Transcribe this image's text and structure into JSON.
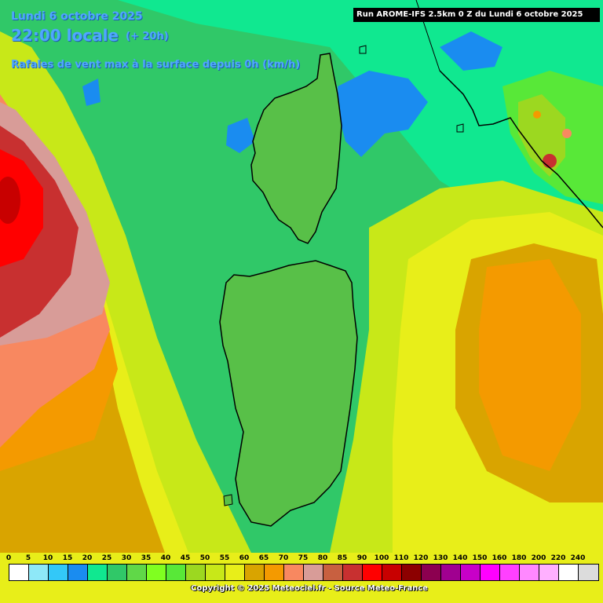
{
  "header": {
    "date": "Lundi 6 octobre 2025",
    "time": "22:00 locale",
    "offset": "(+ 20h)",
    "parameter": "Rafales de vent max à la surface depuis 0h (km/h)"
  },
  "run_info": "Run AROME-IFS 2.5km 0 Z du Lundi 6 octobre 2025",
  "legend": {
    "unit": "km/h",
    "ticks": [
      "0",
      "5",
      "10",
      "15",
      "20",
      "25",
      "30",
      "35",
      "40",
      "45",
      "50",
      "55",
      "60",
      "65",
      "70",
      "75",
      "80",
      "85",
      "90",
      "100",
      "110",
      "120",
      "130",
      "140",
      "150",
      "160",
      "180",
      "200",
      "220",
      "240"
    ],
    "colors": [
      "#ffffff",
      "#8ee8f8",
      "#33c8f8",
      "#1a8cf0",
      "#10e890",
      "#30c868",
      "#60d848",
      "#80ff20",
      "#58e838",
      "#9cd820",
      "#c8e818",
      "#e8ee19",
      "#d9a400",
      "#f49a00",
      "#f88860",
      "#d89c98",
      "#c86040",
      "#c83030",
      "#ff0000",
      "#c80000",
      "#8c0000",
      "#8c0050",
      "#a00090",
      "#c800c8",
      "#ff00ff",
      "#ff40ff",
      "#ff88ff",
      "#ffb0ff",
      "#ffffff",
      "#dcdcdc"
    ]
  },
  "copyright": "Copyright © 2025 Meteociel.fr - Source Meteo-France"
}
